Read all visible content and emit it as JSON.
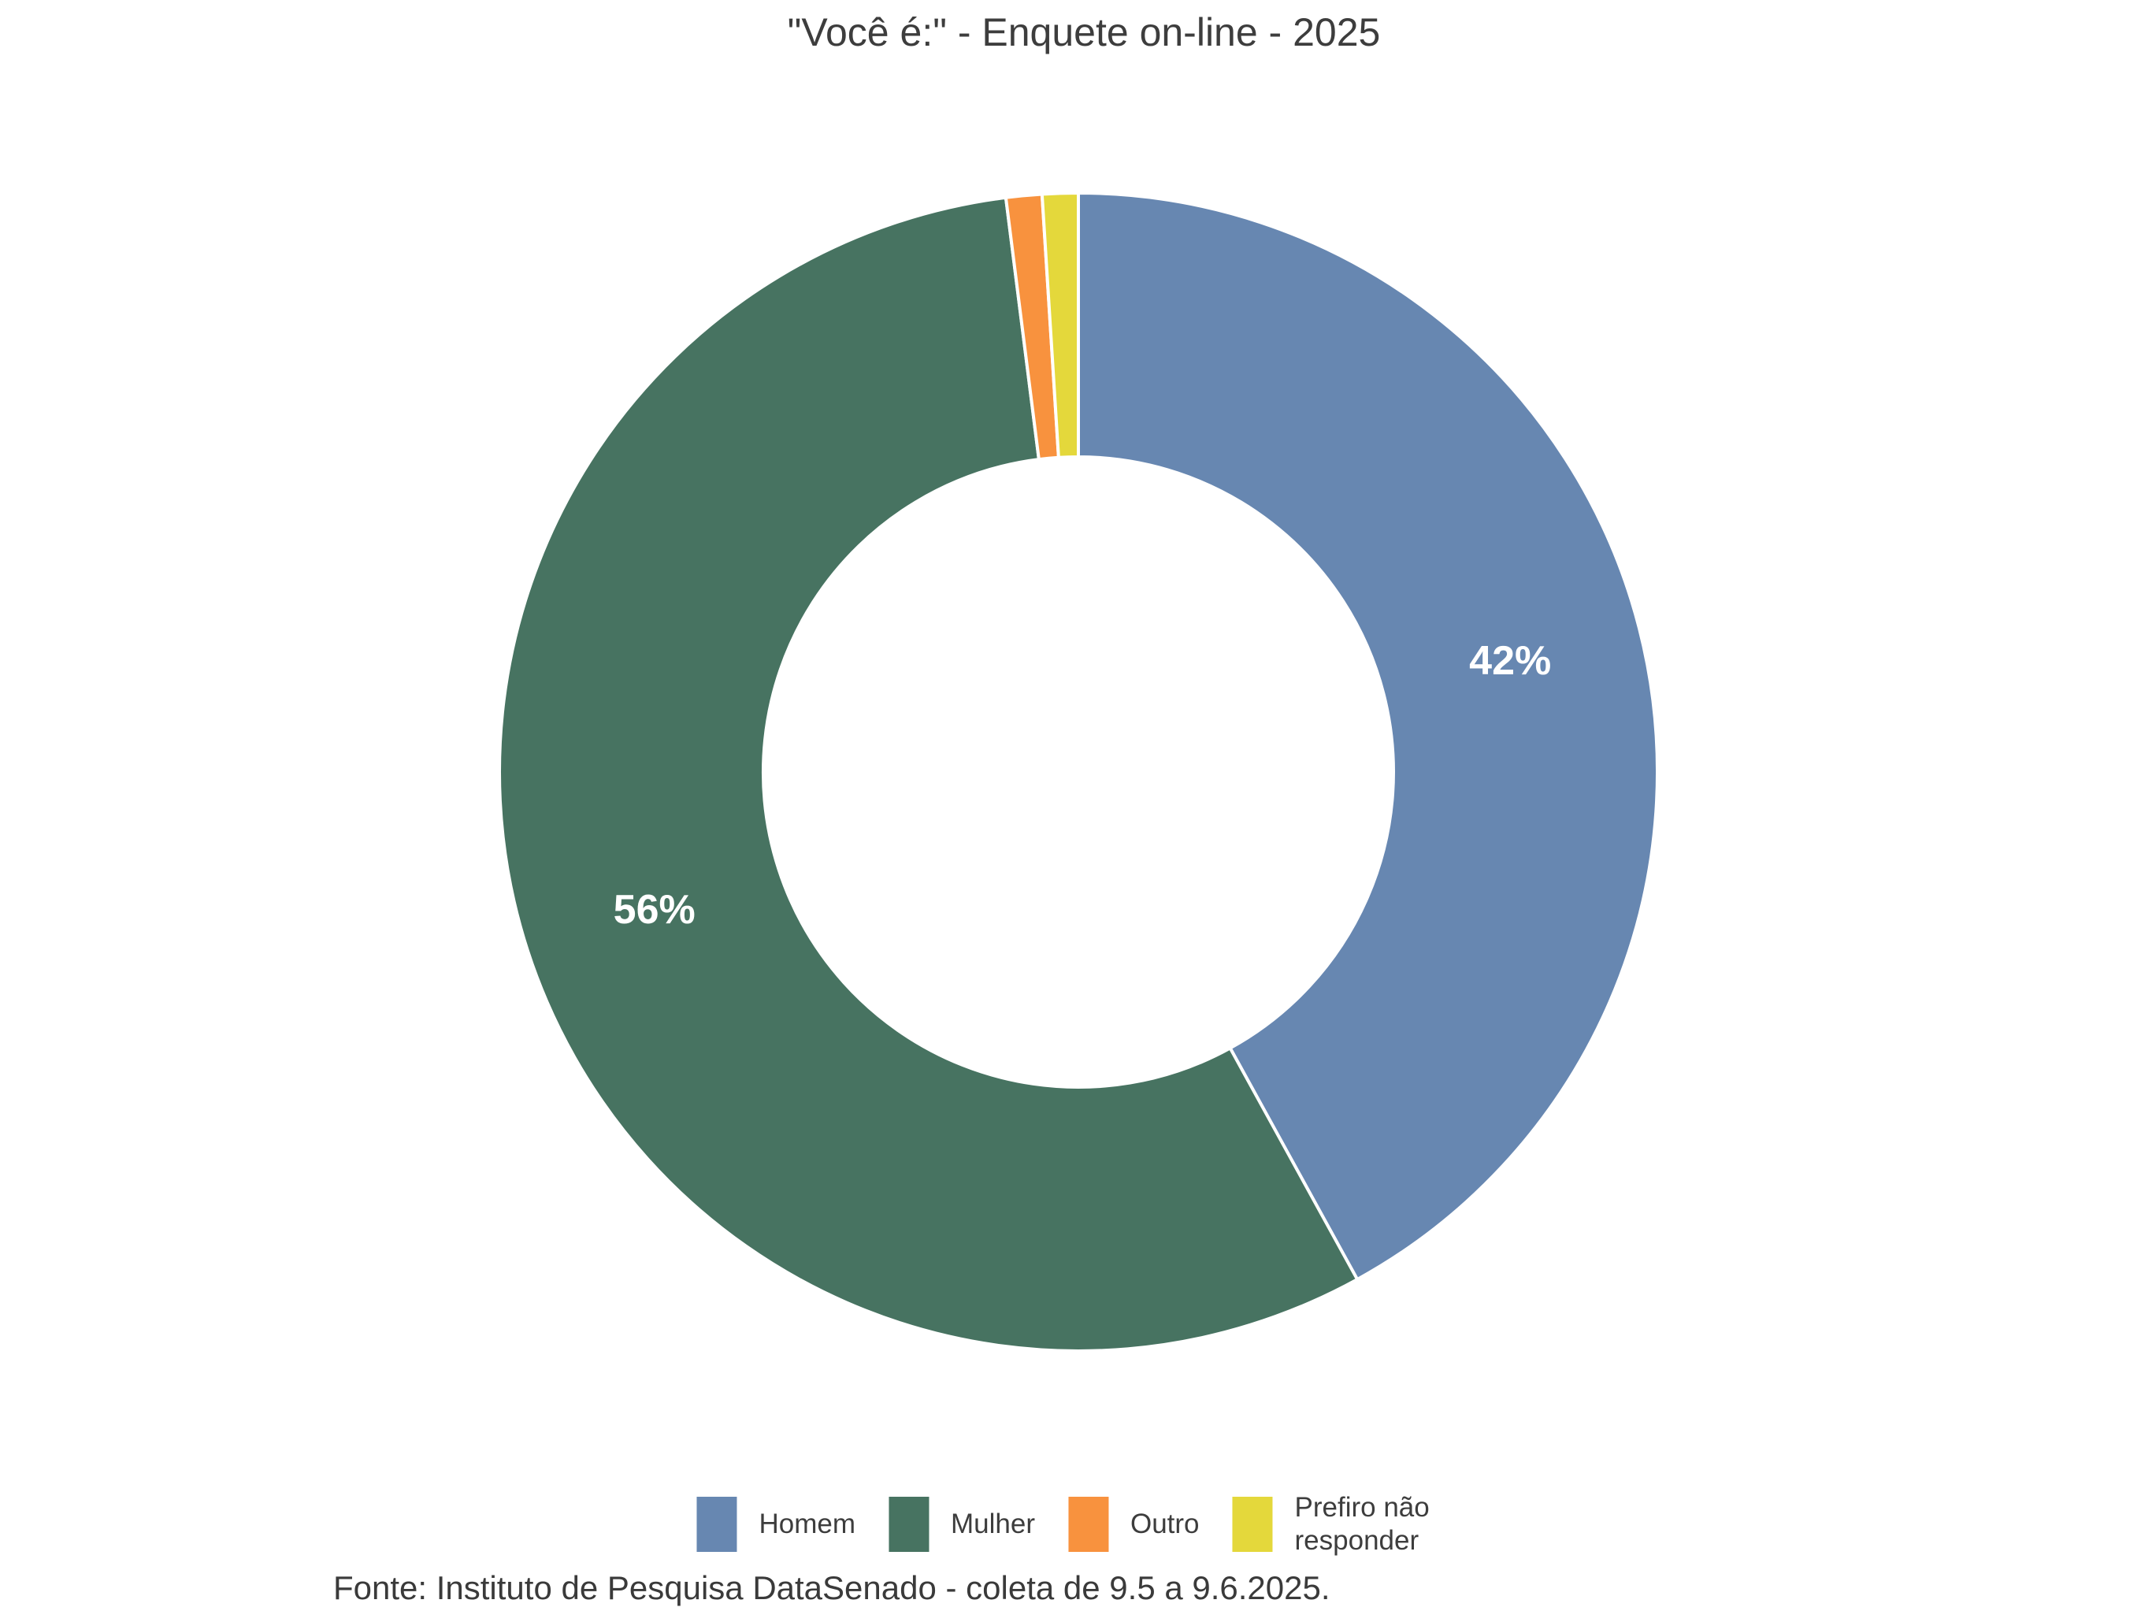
{
  "title": "\"Você é:\" - Enquete on-line - 2025",
  "source_note": "Fonte: Instituto de Pesquisa DataSenado - coleta de 9.5 a 9.6.2025.",
  "chart_data": {
    "type": "pie",
    "subtype": "donut",
    "title": "\"Você é:\" - Enquete on-line - 2025",
    "categories": [
      "Homem",
      "Mulher",
      "Outro",
      "Prefiro não responder"
    ],
    "values": [
      42,
      56,
      1,
      1
    ],
    "unit": "%",
    "labels": [
      "42%",
      "56%",
      "",
      ""
    ],
    "colors": [
      "#6787B1",
      "#477361",
      "#F8923E",
      "#E4D83B"
    ],
    "start_angle_deg": 0,
    "direction": "clockwise",
    "donut_hole_ratio": 0.544,
    "slice_border_color": "#FFFFFF",
    "label_color": "#FFFFFF",
    "legend_position": "bottom",
    "annotation": "Fonte: Instituto de Pesquisa DataSenado - coleta de 9.5 a 9.6.2025."
  }
}
